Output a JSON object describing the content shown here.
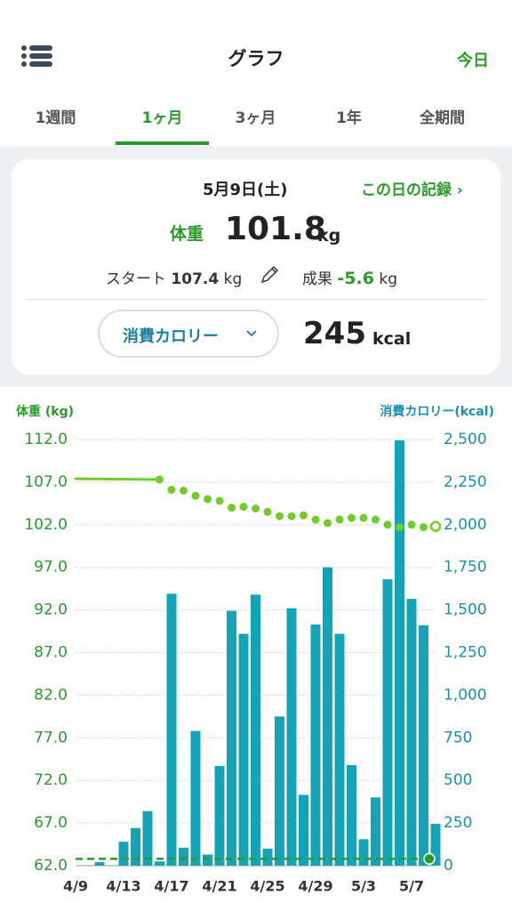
{
  "header": {
    "title": "グラフ",
    "today": "今日"
  },
  "tabs": [
    "1週間",
    "1ヶ月",
    "3ヶ月",
    "1年",
    "全期間"
  ],
  "card": {
    "date": "5月9日(土)",
    "record_link": "この日の記録",
    "weight_label": "体重",
    "weight": 101.8,
    "weight_unit": "kg",
    "start_label": "スタート",
    "start": 107.4,
    "start_unit": "kg",
    "change_label": "成果",
    "change": -5.6,
    "change_unit": "kg",
    "metric_selector": "消費カロリー",
    "calories": 245,
    "calories_unit": "kcal"
  },
  "chart_data": {
    "type": "bar-line",
    "y_label": "体重 (kg)",
    "y2_label": "消費カロリー(kcal)",
    "categories": [
      "4/9",
      null,
      null,
      null,
      "4/13",
      null,
      null,
      null,
      "4/17",
      null,
      null,
      null,
      "4/21",
      null,
      null,
      null,
      "4/25",
      null,
      null,
      null,
      "4/29",
      null,
      null,
      null,
      "5/3",
      null,
      null,
      null,
      "5/7",
      null,
      null
    ],
    "series": [
      {
        "type": "line",
        "color": "#72cc2a",
        "axis": "y",
        "values": [
          107.4,
          null,
          null,
          null,
          null,
          null,
          null,
          107.3,
          106.1,
          106.0,
          105.4,
          105.0,
          104.8,
          104.0,
          104.1,
          103.9,
          103.5,
          103.0,
          103.0,
          103.1,
          102.6,
          102.2,
          102.6,
          102.8,
          102.8,
          102.6,
          102.0,
          101.7,
          102.0,
          101.7,
          101.8
        ]
      },
      {
        "type": "bar",
        "color": "#14a4b8",
        "axis": "y2",
        "values": [
          null,
          null,
          20,
          null,
          140,
          220,
          320,
          25,
          1595,
          105,
          790,
          65,
          585,
          1495,
          1360,
          1590,
          100,
          875,
          1510,
          415,
          1415,
          1750,
          1360,
          590,
          155,
          400,
          1680,
          2495,
          1565,
          1410,
          245
        ]
      }
    ],
    "goal": 62.8,
    "goal_color": "#2a9a2a",
    "ylim": [
      62,
      112
    ],
    "yticks": [
      {
        "value": 62,
        "label": "62.0"
      },
      {
        "value": 67,
        "label": "67.0"
      },
      {
        "value": 72,
        "label": "72.0"
      },
      {
        "value": 77,
        "label": "77.0"
      },
      {
        "value": 82,
        "label": "82.0"
      },
      {
        "value": 87,
        "label": "87.0"
      },
      {
        "value": 92,
        "label": "92.0"
      },
      {
        "value": 97,
        "label": "97.0"
      },
      {
        "value": 102,
        "label": "102.0"
      },
      {
        "value": 107,
        "label": "107.0"
      },
      {
        "value": 112,
        "label": "112.0"
      }
    ],
    "y2lim": [
      0,
      2500
    ],
    "y2ticks": [
      0,
      250,
      500,
      750,
      {
        "value": 1000,
        "label": "1,000"
      },
      {
        "value": 1250,
        "label": "1,250"
      },
      {
        "value": 1500,
        "label": "1,500"
      },
      {
        "value": 1750,
        "label": "1,750"
      },
      {
        "value": 2000,
        "label": "2,000"
      },
      {
        "value": 2250,
        "label": "2,250"
      },
      {
        "value": 2500,
        "label": "2,500"
      }
    ],
    "grid": true
  }
}
